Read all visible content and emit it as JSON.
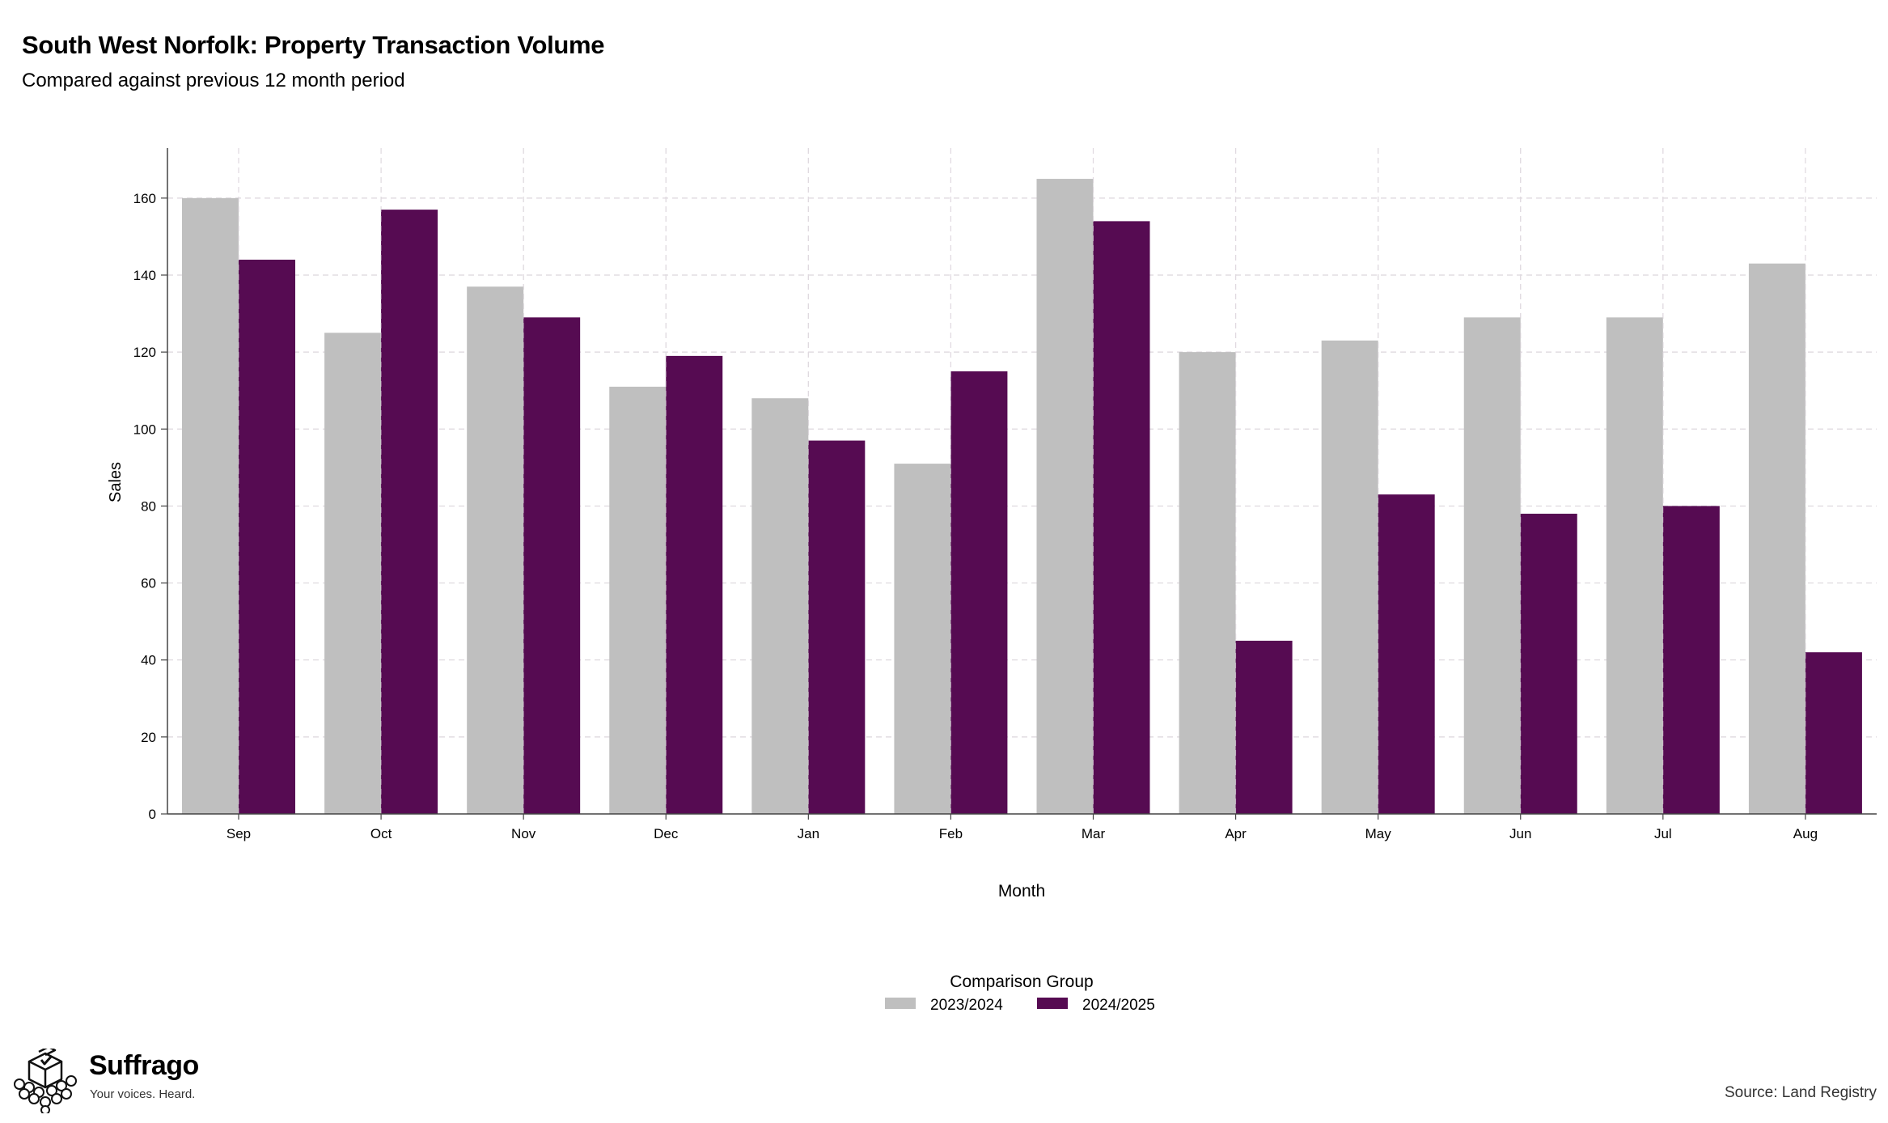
{
  "chart_data": {
    "type": "bar",
    "title": "South West Norfolk: Property Transaction Volume",
    "subtitle": "Compared against previous 12 month period",
    "xlabel": "Month",
    "ylabel": "Sales",
    "ylim": [
      0,
      173
    ],
    "yticks": [
      0,
      20,
      40,
      60,
      80,
      100,
      120,
      140,
      160
    ],
    "categories": [
      "Sep",
      "Oct",
      "Nov",
      "Dec",
      "Jan",
      "Feb",
      "Mar",
      "Apr",
      "May",
      "Jun",
      "Jul",
      "Aug"
    ],
    "series": [
      {
        "name": "2023/2024",
        "color": "#bfbfbf",
        "values": [
          160,
          125,
          137,
          111,
          108,
          91,
          165,
          120,
          123,
          129,
          129,
          143
        ]
      },
      {
        "name": "2024/2025",
        "color": "#560b52",
        "values": [
          144,
          157,
          129,
          119,
          97,
          115,
          154,
          45,
          83,
          78,
          80,
          42
        ]
      }
    ],
    "legend": {
      "title": "Comparison Group",
      "position": "bottom"
    },
    "grid": true
  },
  "brand": {
    "name": "Suffrago",
    "tagline": "Your voices. Heard.",
    "logo_icon": "ballot-box-icon"
  },
  "source": "Source: Land Registry"
}
